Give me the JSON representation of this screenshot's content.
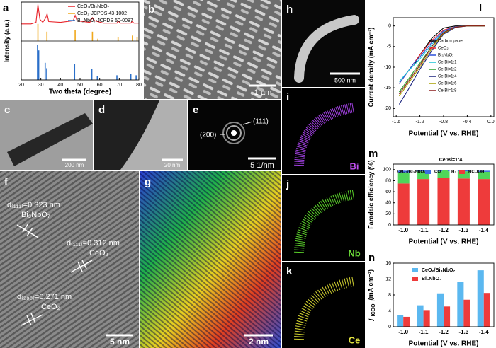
{
  "images": {
    "b": {
      "label": "b",
      "scale": "1 µm"
    },
    "c": {
      "label": "c",
      "scale": "200 nm"
    },
    "d": {
      "label": "d",
      "scale": "20 nm"
    },
    "e": {
      "label": "e",
      "scale": "5 1/nm",
      "spots": [
        "(200)",
        "(111)"
      ]
    },
    "f": {
      "label": "f",
      "scale": "5 nm",
      "annotations": [
        "d₍₁₁₁₎=0.323 nm",
        "Bi₃NbO₇",
        "d₍₁₁₁₎=0.312 nm",
        "CeO₂",
        "d₍₂₀₀₎=0.271 nm",
        "CeO₂"
      ]
    },
    "g": {
      "label": "g",
      "scale": "2 nm"
    },
    "h": {
      "label": "h",
      "scale": "500 nm"
    },
    "i": {
      "label": "i",
      "element": "Bi"
    },
    "j": {
      "label": "j",
      "element": "Nb"
    },
    "k": {
      "label": "k",
      "element": "Ce"
    }
  },
  "chart_data": [
    {
      "type": "line",
      "label": "a",
      "xlabel": "Two theta (degree)",
      "ylabel": "Intensity (a.u.)",
      "xlim": [
        20,
        80
      ],
      "xticks": [
        20,
        30,
        40,
        50,
        60,
        70,
        80
      ],
      "ylim": [
        0,
        100
      ],
      "legend": "upper right",
      "series": [
        {
          "name": "CeO₂/Bi₃NbO₇",
          "color": "#e8232a",
          "x": [
            20,
            25,
            27.5,
            28.5,
            29.5,
            31,
            32.5,
            33.2,
            34,
            40,
            46.5,
            47.5,
            48.5,
            55,
            56.3,
            57.5,
            62,
            68.8,
            69.5,
            70.5,
            75.8,
            76.6,
            77.5,
            80
          ],
          "values": [
            72,
            72,
            74,
            97,
            78,
            74,
            80,
            85,
            75,
            74,
            76,
            83,
            76,
            74,
            80,
            76,
            73,
            73,
            76,
            73,
            73,
            75,
            73,
            73
          ]
        },
        {
          "name": "CeO₂-JCPDS 43-1002",
          "color": "#f0a81c",
          "kind": "stick",
          "x": [
            28.5,
            33.1,
            47.5,
            56.3,
            59.1,
            69.4,
            76.7,
            79.1
          ],
          "values": [
            72,
            62,
            64,
            62,
            53,
            55,
            57,
            55
          ]
        },
        {
          "name": "Bi₃NbO₇-JCPDS 50-0087",
          "color": "#2a6fc9",
          "kind": "stick",
          "x": [
            28.3,
            28.9,
            32.2,
            33,
            47.2,
            56,
            58.8,
            68.8,
            75.9,
            78.6
          ],
          "values": [
            45,
            38,
            22,
            15,
            20,
            14,
            5,
            6,
            8,
            6
          ]
        }
      ]
    },
    {
      "type": "line",
      "label": "l",
      "xlabel": "Potential (V vs. RHE)",
      "ylabel": "Current density (mA cm⁻²)",
      "xlim": [
        -1.65,
        0.05
      ],
      "xticks": [
        -1.6,
        -1.2,
        -0.8,
        -0.4,
        {
          "value": 0,
          "label": "0.0"
        }
      ],
      "ylim": [
        -22,
        2
      ],
      "yticks": [
        -20,
        -15,
        -10,
        -5,
        0
      ],
      "legend": "center right",
      "x": [
        -1.55,
        -1.4,
        -1.3,
        -1.2,
        -1.0,
        -0.8,
        -0.6,
        -0.4,
        -0.1
      ],
      "series": [
        {
          "name": "Carbon paper",
          "color": "#000000",
          "values": [
            null,
            null,
            -9.5,
            -7,
            -3,
            -0.5,
            0,
            0,
            0
          ]
        },
        {
          "name": "CeO₂",
          "color": "#e8232a",
          "values": [
            -14,
            -11,
            -9,
            -7,
            -3.5,
            -1,
            -0.2,
            0,
            0
          ]
        },
        {
          "name": "Bi₃NbO₇",
          "color": "#2a4fd9",
          "values": [
            -14,
            -11,
            -9,
            -7.5,
            -4,
            -1.2,
            -0.2,
            0,
            0
          ]
        },
        {
          "name": "Ce:Bi=1:1",
          "color": "#19c3d6",
          "values": [
            -13.5,
            -11,
            -9.5,
            -8,
            -4.5,
            -1.5,
            -0.3,
            0,
            0
          ]
        },
        {
          "name": "Ce:Bi=1:2",
          "color": "#2ca02c",
          "values": [
            -16,
            -13,
            -11,
            -9,
            -5,
            -1.8,
            -0.3,
            0,
            0
          ]
        },
        {
          "name": "Ce:Bi=1:4",
          "color": "#1a237e",
          "values": [
            -19,
            -15.5,
            -13,
            -10.5,
            -6,
            -2,
            -0.4,
            0,
            0
          ]
        },
        {
          "name": "Ce:Bi=1:6",
          "color": "#a8a000",
          "values": [
            -17,
            -14,
            -12,
            -10,
            -5.5,
            -1.8,
            -0.3,
            0,
            0
          ]
        },
        {
          "name": "Ce:Bi=1:8",
          "color": "#8b1a1a",
          "values": [
            -16.5,
            -13.5,
            -11.5,
            -9.5,
            -5,
            -1.6,
            -0.3,
            0,
            0
          ]
        }
      ]
    },
    {
      "type": "bar",
      "label": "m",
      "stacked": true,
      "annotation": "Ce:Bi=1:4",
      "legend_title": "CeO₂/Bi₃NbO₇",
      "xlabel": "Potential (V vs. RHE)",
      "ylabel": "Faradaic efficiency (%)",
      "legend": "upper center",
      "categories": [
        "-1.0",
        "-1.1",
        "-1.2",
        "-1.3",
        "-1.4"
      ],
      "ylim": [
        0,
        110
      ],
      "yticks": [
        0,
        20,
        40,
        60,
        80,
        100
      ],
      "series": [
        {
          "name": "HCOOH",
          "color": "#ee3b3b",
          "values": [
            75,
            83,
            85,
            84,
            83
          ]
        },
        {
          "name": "H₂",
          "color": "#4fd65a",
          "values": [
            20,
            14,
            12,
            13,
            13
          ]
        },
        {
          "name": "CO",
          "color": "#3b6fe0",
          "values": [
            3,
            2,
            2,
            2,
            2
          ]
        }
      ]
    },
    {
      "type": "bar",
      "label": "n",
      "xlabel": "Potential (V vs. RHE)",
      "ylabel": "j",
      "ylabel_sub": "HCOOH",
      "ylabel_unit": "(mA cm⁻²)",
      "legend": "upper left",
      "categories": [
        "-1.0",
        "-1.1",
        "-1.2",
        "-1.3",
        "-1.4"
      ],
      "ylim": [
        0,
        16
      ],
      "yticks": [
        0,
        4,
        8,
        12,
        16
      ],
      "series": [
        {
          "name": "CeO₂/Bi₃NbO₇",
          "color": "#5bb8f0",
          "values": [
            2.9,
            5.4,
            8.4,
            11.3,
            14.2
          ]
        },
        {
          "name": "Bi₃NbO₇",
          "color": "#ee3b3b",
          "values": [
            2.5,
            4.2,
            5.1,
            6.8,
            8.5
          ]
        }
      ]
    }
  ]
}
